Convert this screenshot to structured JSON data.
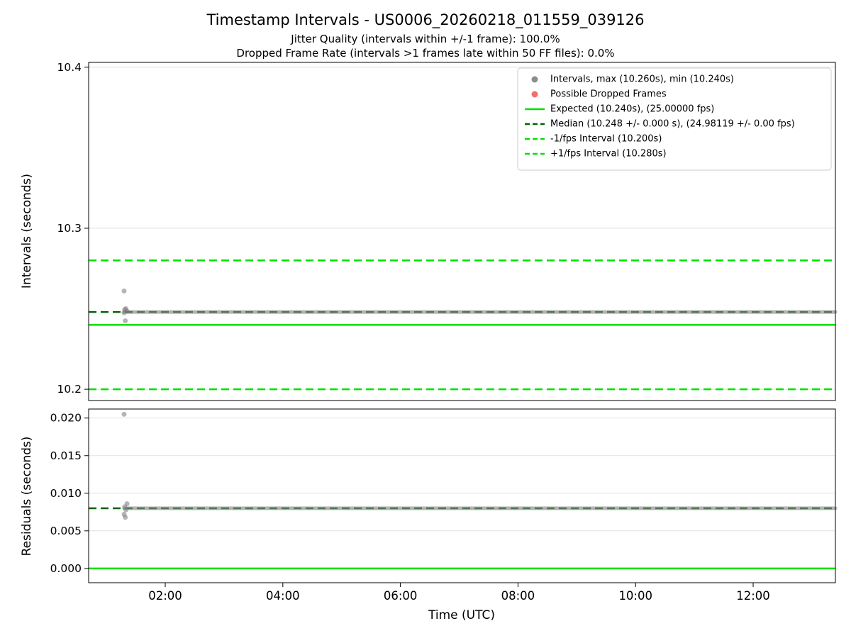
{
  "chart_data": {
    "type": "scatter",
    "title": "Timestamp Intervals - US0006_20260218_011559_039126",
    "subtitle1": "Jitter Quality (intervals within +/-1 frame): 100.0%",
    "subtitle2": "Dropped Frame Rate (intervals >1 frames late within 50 FF files): 0.0%",
    "xlabel": "Time (UTC)",
    "xlim": [
      0.697,
      13.399
    ],
    "x_ticks": [
      {
        "value": 2,
        "label": "02:00"
      },
      {
        "value": 4,
        "label": "04:00"
      },
      {
        "value": 6,
        "label": "06:00"
      },
      {
        "value": 8,
        "label": "08:00"
      },
      {
        "value": 10,
        "label": "10:00"
      },
      {
        "value": 12,
        "label": "12:00"
      }
    ],
    "colors": {
      "bright_green": "#00e100",
      "dark_green": "#006400",
      "gray": "#8c8c8c",
      "red": "#f26d6d",
      "grid": "#dcdcdc",
      "spine": "#000000",
      "legend_border": "#cccccc"
    },
    "top_plot": {
      "ylabel": "Intervals (seconds)",
      "ylim": [
        10.193,
        10.403
      ],
      "y_ticks": [
        {
          "value": 10.2,
          "label": "10.2"
        },
        {
          "value": 10.3,
          "label": "10.3"
        },
        {
          "value": 10.4,
          "label": "10.4"
        }
      ],
      "lines": [
        {
          "name": "expected",
          "y": 10.24,
          "style": "solid",
          "color": "bright_green",
          "width": 2.5
        },
        {
          "name": "minus-one-fps",
          "y": 10.2,
          "style": "dashed",
          "color": "bright_green",
          "width": 2.5
        },
        {
          "name": "plus-one-fps",
          "y": 10.28,
          "style": "dashed",
          "color": "bright_green",
          "width": 2.5
        },
        {
          "name": "median",
          "y": 10.248,
          "style": "dashed",
          "color": "dark_green",
          "width": 2.5
        }
      ],
      "scatter_band": {
        "y": 10.248,
        "x_start": 1.3,
        "x_end": 13.399
      },
      "scatter_points": [
        [
          1.3,
          10.261
        ],
        [
          1.3,
          10.2475
        ],
        [
          1.31,
          10.2495
        ],
        [
          1.33,
          10.25
        ],
        [
          1.35,
          10.2485
        ],
        [
          1.32,
          10.2425
        ]
      ]
    },
    "bottom_plot": {
      "ylabel": "Residuals (seconds)",
      "ylim": [
        -0.0019,
        0.0212
      ],
      "y_ticks": [
        {
          "value": 0.0,
          "label": "0.000"
        },
        {
          "value": 0.005,
          "label": "0.005"
        },
        {
          "value": 0.01,
          "label": "0.010"
        },
        {
          "value": 0.015,
          "label": "0.015"
        },
        {
          "value": 0.02,
          "label": "0.020"
        }
      ],
      "lines": [
        {
          "name": "zero",
          "y": 0.0,
          "style": "solid",
          "color": "bright_green",
          "width": 2.5
        },
        {
          "name": "median-residual",
          "y": 0.008,
          "style": "dashed",
          "color": "dark_green",
          "width": 2.5
        }
      ],
      "scatter_band": {
        "y": 0.008,
        "x_start": 1.3,
        "x_end": 13.399
      },
      "scatter_points": [
        [
          1.3,
          0.0205
        ],
        [
          1.31,
          0.0082
        ],
        [
          1.32,
          0.0068
        ],
        [
          1.3,
          0.0072
        ],
        [
          1.33,
          0.0078
        ],
        [
          1.35,
          0.0086
        ]
      ]
    },
    "legend": [
      {
        "label": "Intervals, max (10.260s), min (10.240s)",
        "marker": "dot",
        "color": "gray"
      },
      {
        "label": "Possible Dropped Frames",
        "marker": "dot",
        "color": "red"
      },
      {
        "label": "Expected (10.240s), (25.00000 fps)",
        "marker": "line-solid",
        "color": "bright_green"
      },
      {
        "label": "Median (10.248 +/- 0.000 s), (24.98119 +/- 0.00 fps)",
        "marker": "line-dashed",
        "color": "dark_green"
      },
      {
        "label": "-1/fps Interval (10.200s)",
        "marker": "line-dashed",
        "color": "bright_green"
      },
      {
        "label": "+1/fps Interval (10.280s)",
        "marker": "line-dashed",
        "color": "bright_green"
      }
    ]
  }
}
